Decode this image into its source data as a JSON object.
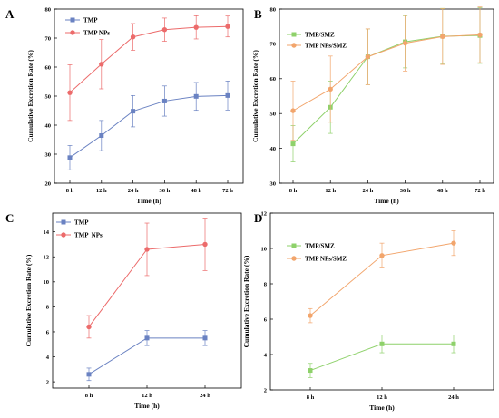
{
  "chart_data": [
    {
      "panel_label": "A",
      "type": "line",
      "categories": [
        "8 h",
        "12 h",
        "24 h",
        "36 h",
        "48 h",
        "72 h"
      ],
      "xlabel": "Time (h)",
      "ylabel": "Cumulative Excretion Rate (%)",
      "ylim": [
        20,
        80
      ],
      "yticks": [
        20,
        30,
        40,
        50,
        60,
        70,
        80
      ],
      "grid": false,
      "legend": "top-left",
      "series": [
        {
          "name": "TMP",
          "color": "#6a82c2",
          "marker": "square",
          "values": [
            28.8,
            36.4,
            44.8,
            48.3,
            49.9,
            50.2
          ],
          "errors": [
            4.2,
            5.2,
            5.4,
            5.2,
            4.8,
            5.0
          ]
        },
        {
          "name": "TMP NPs",
          "color": "#ec6b6b",
          "marker": "circle",
          "values": [
            51.2,
            61.0,
            70.4,
            72.9,
            73.7,
            74.0
          ],
          "errors": [
            9.6,
            8.5,
            4.6,
            4.0,
            4.0,
            3.6
          ]
        }
      ]
    },
    {
      "panel_label": "B",
      "type": "line",
      "categories": [
        "8 h",
        "12 h",
        "24 h",
        "36 h",
        "48 h",
        "72 h"
      ],
      "xlabel": "Time (h)",
      "ylabel": "Cumulative Excretion Rate (%)",
      "ylim": [
        30,
        80
      ],
      "yticks": [
        30,
        40,
        50,
        60,
        70,
        80
      ],
      "grid": false,
      "legend": "top-left",
      "series": [
        {
          "name": "TMP/SMZ",
          "color": "#8ed16a",
          "marker": "square",
          "values": [
            41.3,
            51.8,
            66.3,
            70.6,
            72.2,
            72.4
          ],
          "errors": [
            5.2,
            7.5,
            8.0,
            7.5,
            8.0,
            8.0
          ]
        },
        {
          "name": "TMP NPs/SMZ",
          "color": "#f2a56c",
          "marker": "circle",
          "values": [
            50.8,
            57.0,
            66.3,
            70.2,
            72.1,
            72.6
          ],
          "errors": [
            8.5,
            9.5,
            8.0,
            8.0,
            8.0,
            8.0
          ]
        }
      ]
    },
    {
      "panel_label": "C",
      "type": "line",
      "categories": [
        "8 h",
        "12 h",
        "24 h"
      ],
      "xlabel": "Time (h)",
      "ylabel": "Cumulative Excretion Rate (%)",
      "ylim": [
        1.5,
        15.5
      ],
      "yticks": [
        2,
        4,
        6,
        8,
        10,
        12,
        14
      ],
      "grid": false,
      "legend": "top-left",
      "series": [
        {
          "name": "TMP",
          "color": "#6a82c2",
          "marker": "square",
          "values": [
            2.6,
            5.5,
            5.5
          ],
          "errors": [
            0.5,
            0.6,
            0.6
          ]
        },
        {
          "name": "TMP  NPs",
          "color": "#ec6b6b",
          "marker": "circle",
          "values": [
            6.4,
            12.6,
            13.0
          ],
          "errors": [
            0.9,
            2.1,
            2.1
          ]
        }
      ]
    },
    {
      "panel_label": "D",
      "type": "line",
      "categories": [
        "8 h",
        "12 h",
        "24 h"
      ],
      "xlabel": "Time (h)",
      "ylabel": "Cumulative Excretion Rate (%)",
      "ylim": [
        2,
        12
      ],
      "yticks": [
        2,
        4,
        6,
        8,
        10,
        12
      ],
      "grid": false,
      "legend": "top-left",
      "series": [
        {
          "name": "TMP/SMZ",
          "color": "#8ed16a",
          "marker": "square",
          "values": [
            3.1,
            4.6,
            4.6
          ],
          "errors": [
            0.4,
            0.5,
            0.5
          ]
        },
        {
          "name": "TMP NPs/SMZ",
          "color": "#f2a56c",
          "marker": "circle",
          "values": [
            6.2,
            9.6,
            10.3
          ],
          "errors": [
            0.4,
            0.7,
            0.7
          ]
        }
      ]
    }
  ]
}
